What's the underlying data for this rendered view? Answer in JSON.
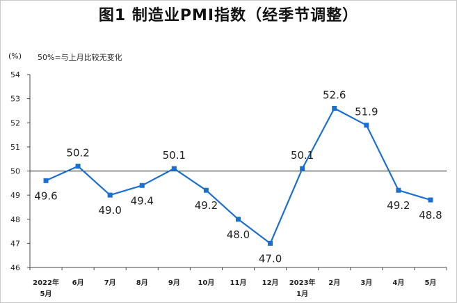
{
  "chart_data": {
    "type": "line",
    "title": "图1  制造业PMI指数（经季节调整）",
    "y_unit_label": "(%)",
    "note": "50%=与上月比较无变化",
    "categories": [
      {
        "line1": "2022年",
        "line2": "5月"
      },
      {
        "line1": "6月",
        "line2": ""
      },
      {
        "line1": "7月",
        "line2": ""
      },
      {
        "line1": "8月",
        "line2": ""
      },
      {
        "line1": "9月",
        "line2": ""
      },
      {
        "line1": "10月",
        "line2": ""
      },
      {
        "line1": "11月",
        "line2": ""
      },
      {
        "line1": "12月",
        "line2": ""
      },
      {
        "line1": "2023年",
        "line2": "1月"
      },
      {
        "line1": "2月",
        "line2": ""
      },
      {
        "line1": "3月",
        "line2": ""
      },
      {
        "line1": "4月",
        "line2": ""
      },
      {
        "line1": "5月",
        "line2": ""
      }
    ],
    "values": [
      49.6,
      50.2,
      49.0,
      49.4,
      50.1,
      49.2,
      48.0,
      47.0,
      50.1,
      52.6,
      51.9,
      49.2,
      48.8
    ],
    "data_labels": [
      "49.6",
      "50.2",
      "49.0",
      "49.4",
      "50.1",
      "49.2",
      "48.0",
      "47.0",
      "50.1",
      "52.6",
      "51.9",
      "49.2",
      "48.8"
    ],
    "label_position": [
      "below",
      "above",
      "below",
      "below",
      "above",
      "below",
      "below",
      "below",
      "above",
      "above",
      "above",
      "below",
      "below"
    ],
    "ylim": [
      46,
      54
    ],
    "yticks": [
      "46",
      "47",
      "48",
      "49",
      "50",
      "51",
      "52",
      "53",
      "54"
    ],
    "reference_line": 50,
    "grid": false,
    "line_color": "#1a6fd1",
    "reference_color": "#000000"
  }
}
